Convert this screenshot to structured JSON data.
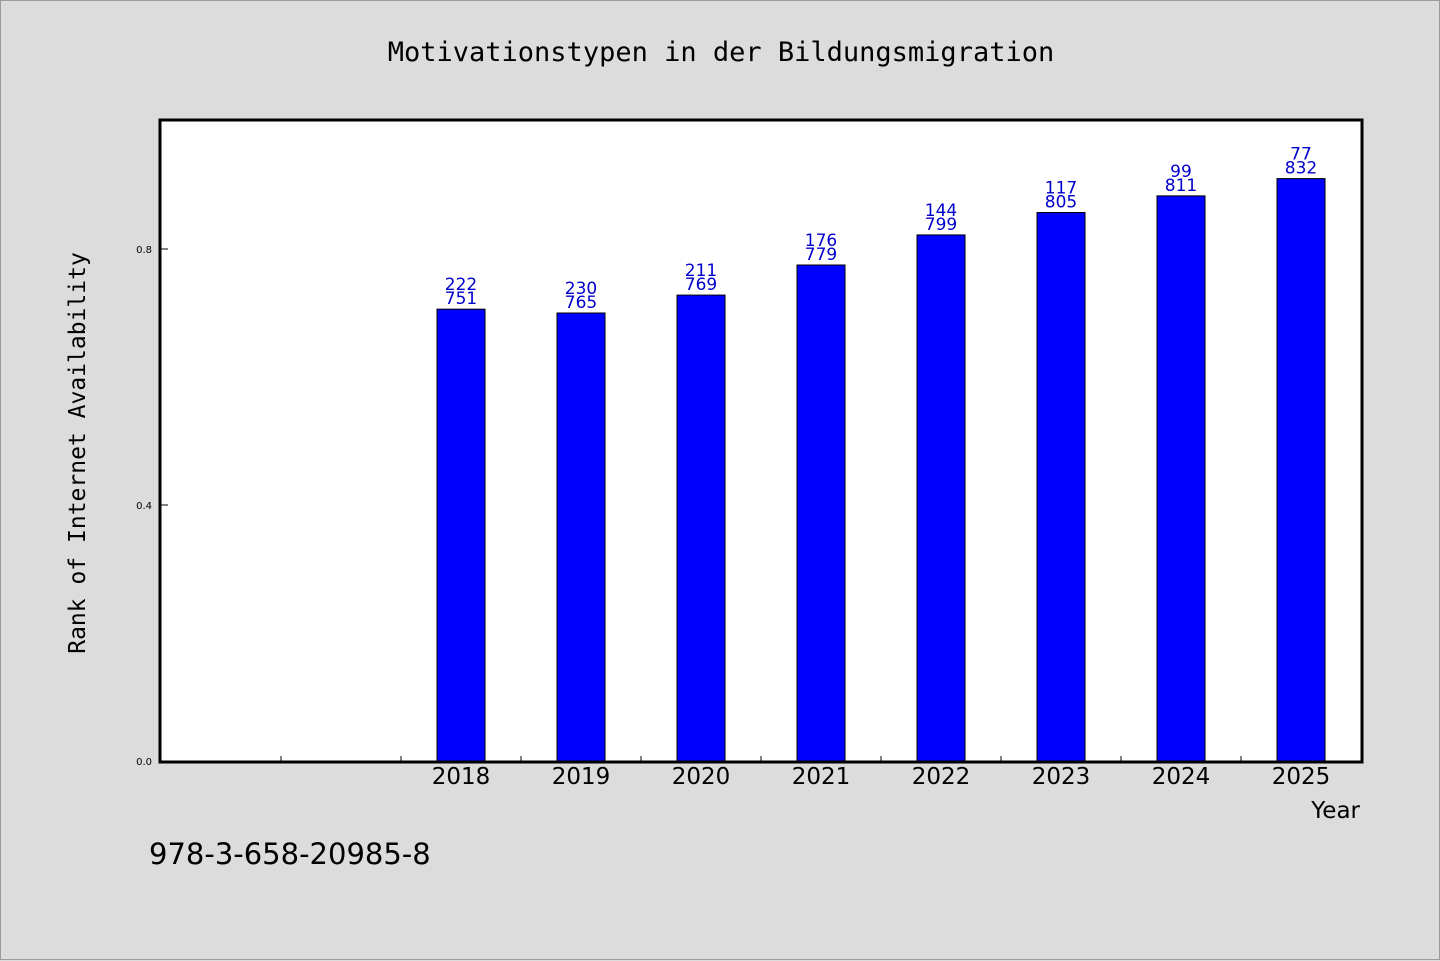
{
  "chart_data": {
    "type": "bar",
    "title": "Motivationstypen in der Bildungsmigration",
    "xlabel": "Year",
    "ylabel": "Rank of Internet Availability",
    "categories": [
      "2018",
      "2019",
      "2020",
      "2021",
      "2022",
      "2023",
      "2024",
      "2025"
    ],
    "values": [
      0.706,
      0.7,
      0.728,
      0.775,
      0.822,
      0.857,
      0.883,
      0.91
    ],
    "labels_top": [
      "222",
      "230",
      "211",
      "176",
      "144",
      "117",
      "99",
      "77"
    ],
    "labels_bottom": [
      "751",
      "765",
      "769",
      "779",
      "799",
      "805",
      "811",
      "832"
    ],
    "yticks": [
      0.0,
      0.4,
      0.8
    ],
    "ytick_labels": [
      "0.0",
      "0.4",
      "0.8"
    ],
    "ylim": [
      0.0,
      1.0
    ],
    "grid": false,
    "bar_color": "#0000ff",
    "label_color": "#0000cc"
  },
  "footnote": "978-3-658-20985-8"
}
